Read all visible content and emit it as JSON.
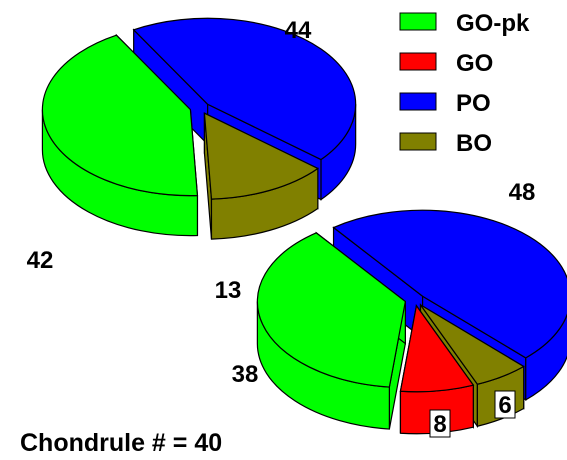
{
  "colors": {
    "GO-pk": "#00ff00",
    "GO": "#ff0000",
    "PO": "#0000ff",
    "BO": "#808000",
    "outline": "#000000"
  },
  "legend": [
    {
      "key": "GO-pk",
      "label": "GO-pk"
    },
    {
      "key": "GO",
      "label": "GO"
    },
    {
      "key": "PO",
      "label": "PO"
    },
    {
      "key": "BO",
      "label": "BO"
    }
  ],
  "annotation": "Chondrule # = 40",
  "chart_data": [
    {
      "type": "pie",
      "slices": [
        {
          "category": "PO",
          "value": 44,
          "label": "44"
        },
        {
          "category": "BO",
          "value": 13,
          "label": "13"
        },
        {
          "category": "GO-pk",
          "value": 42,
          "label": "42"
        }
      ]
    },
    {
      "type": "pie",
      "slices": [
        {
          "category": "PO",
          "value": 48,
          "label": "48"
        },
        {
          "category": "BO",
          "value": 6,
          "label": "6"
        },
        {
          "category": "GO",
          "value": 8,
          "label": "8"
        },
        {
          "category": "GO-pk",
          "value": 38,
          "label": "38"
        }
      ]
    }
  ]
}
